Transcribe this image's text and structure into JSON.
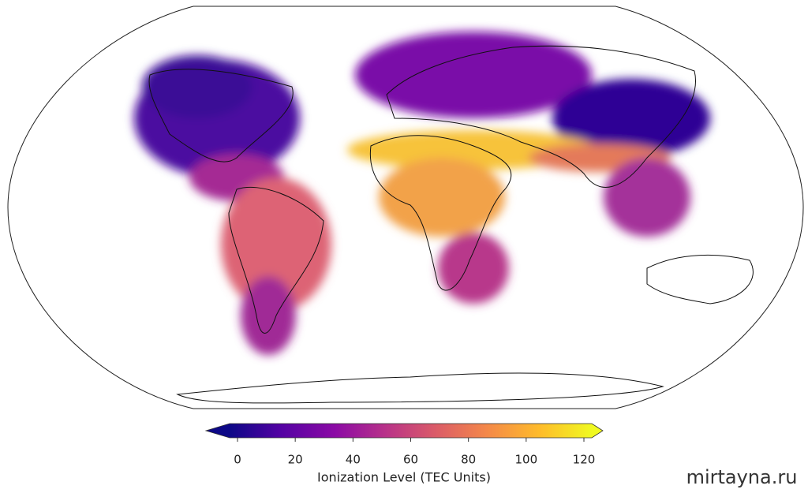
{
  "colorbar": {
    "label": "Ionization Level (TEC Units)",
    "lim": [
      0,
      120
    ],
    "ticks": [
      0,
      20,
      40,
      60,
      80,
      100,
      120
    ]
  },
  "watermark": "mirtayna.ru"
}
